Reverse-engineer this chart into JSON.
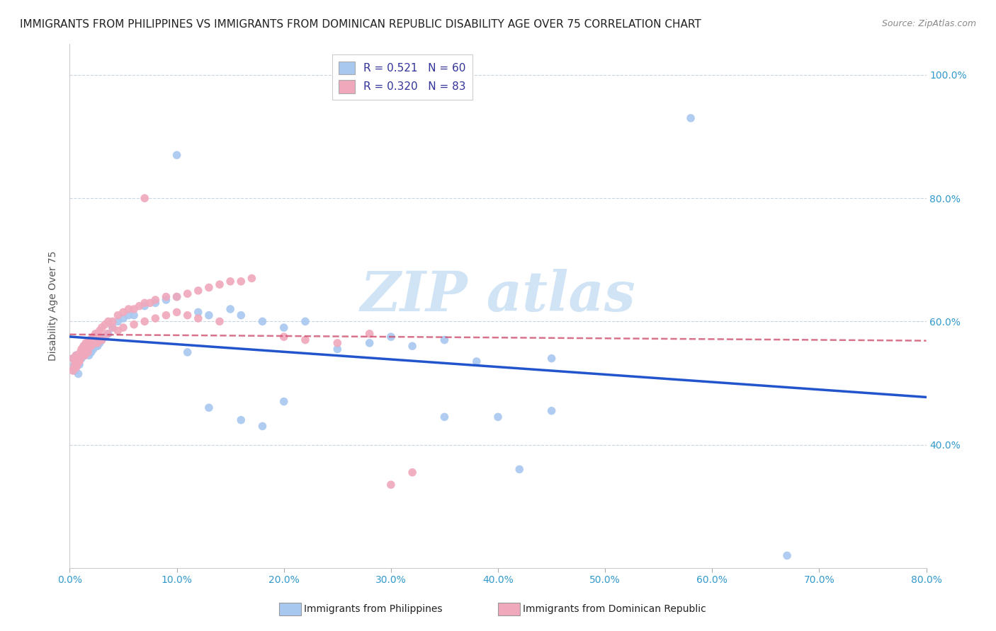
{
  "title": "IMMIGRANTS FROM PHILIPPINES VS IMMIGRANTS FROM DOMINICAN REPUBLIC DISABILITY AGE OVER 75 CORRELATION CHART",
  "source": "Source: ZipAtlas.com",
  "xlabel_blue": "Immigrants from Philippines",
  "xlabel_pink": "Immigrants from Dominican Republic",
  "ylabel": "Disability Age Over 75",
  "R_blue": 0.521,
  "N_blue": 60,
  "R_pink": 0.32,
  "N_pink": 83,
  "xlim": [
    0.0,
    0.8
  ],
  "ylim": [
    0.2,
    1.05
  ],
  "yticks": [
    0.4,
    0.6,
    0.8,
    1.0
  ],
  "xticks": [
    0.0,
    0.1,
    0.2,
    0.3,
    0.4,
    0.5,
    0.6,
    0.7,
    0.8
  ],
  "blue_color": "#A8C8F0",
  "pink_color": "#F0A8BC",
  "blue_line_color": "#2255CC",
  "pink_line_color": "#CC4466",
  "background_color": "#FFFFFF",
  "watermark_color": "#D0E4F5",
  "title_fontsize": 11,
  "axis_label_fontsize": 10,
  "tick_fontsize": 10,
  "legend_fontsize": 11,
  "blue_x": [
    0.003,
    0.004,
    0.005,
    0.006,
    0.007,
    0.008,
    0.009,
    0.01,
    0.011,
    0.012,
    0.013,
    0.014,
    0.015,
    0.016,
    0.017,
    0.018,
    0.019,
    0.02,
    0.022,
    0.024,
    0.026,
    0.028,
    0.03,
    0.033,
    0.036,
    0.04,
    0.045,
    0.05,
    0.055,
    0.06,
    0.07,
    0.08,
    0.09,
    0.1,
    0.11,
    0.12,
    0.13,
    0.15,
    0.16,
    0.18,
    0.2,
    0.22,
    0.25,
    0.28,
    0.3,
    0.32,
    0.35,
    0.38,
    0.42,
    0.45,
    0.13,
    0.16,
    0.18,
    0.2,
    0.35,
    0.4,
    0.45,
    0.1,
    0.58,
    0.67
  ],
  "blue_y": [
    0.54,
    0.53,
    0.52,
    0.545,
    0.535,
    0.515,
    0.53,
    0.545,
    0.54,
    0.55,
    0.56,
    0.545,
    0.555,
    0.56,
    0.55,
    0.545,
    0.56,
    0.55,
    0.555,
    0.56,
    0.56,
    0.565,
    0.57,
    0.575,
    0.58,
    0.59,
    0.6,
    0.605,
    0.61,
    0.61,
    0.625,
    0.63,
    0.635,
    0.64,
    0.55,
    0.615,
    0.61,
    0.62,
    0.61,
    0.6,
    0.59,
    0.6,
    0.555,
    0.565,
    0.575,
    0.56,
    0.57,
    0.535,
    0.36,
    0.54,
    0.46,
    0.44,
    0.43,
    0.47,
    0.445,
    0.445,
    0.455,
    0.87,
    0.93,
    0.22
  ],
  "pink_x": [
    0.003,
    0.005,
    0.006,
    0.007,
    0.008,
    0.009,
    0.01,
    0.011,
    0.012,
    0.013,
    0.014,
    0.015,
    0.016,
    0.017,
    0.018,
    0.019,
    0.02,
    0.022,
    0.024,
    0.026,
    0.028,
    0.03,
    0.033,
    0.036,
    0.04,
    0.045,
    0.05,
    0.055,
    0.06,
    0.065,
    0.07,
    0.075,
    0.08,
    0.09,
    0.1,
    0.11,
    0.12,
    0.13,
    0.14,
    0.15,
    0.16,
    0.17,
    0.003,
    0.004,
    0.005,
    0.006,
    0.007,
    0.008,
    0.009,
    0.01,
    0.011,
    0.012,
    0.013,
    0.014,
    0.015,
    0.016,
    0.017,
    0.018,
    0.02,
    0.022,
    0.024,
    0.026,
    0.028,
    0.03,
    0.035,
    0.04,
    0.045,
    0.05,
    0.06,
    0.07,
    0.08,
    0.09,
    0.1,
    0.11,
    0.12,
    0.14,
    0.2,
    0.22,
    0.25,
    0.28,
    0.3,
    0.32,
    0.07
  ],
  "pink_y": [
    0.54,
    0.535,
    0.545,
    0.54,
    0.535,
    0.545,
    0.55,
    0.555,
    0.55,
    0.56,
    0.555,
    0.565,
    0.56,
    0.56,
    0.565,
    0.57,
    0.57,
    0.575,
    0.58,
    0.58,
    0.585,
    0.59,
    0.595,
    0.6,
    0.6,
    0.61,
    0.615,
    0.62,
    0.62,
    0.625,
    0.63,
    0.63,
    0.635,
    0.64,
    0.64,
    0.645,
    0.65,
    0.655,
    0.66,
    0.665,
    0.665,
    0.67,
    0.52,
    0.525,
    0.53,
    0.525,
    0.53,
    0.535,
    0.535,
    0.54,
    0.545,
    0.545,
    0.55,
    0.545,
    0.555,
    0.555,
    0.55,
    0.56,
    0.56,
    0.565,
    0.565,
    0.565,
    0.57,
    0.57,
    0.58,
    0.59,
    0.585,
    0.59,
    0.595,
    0.6,
    0.605,
    0.61,
    0.615,
    0.61,
    0.605,
    0.6,
    0.575,
    0.57,
    0.565,
    0.58,
    0.335,
    0.355,
    0.8
  ]
}
